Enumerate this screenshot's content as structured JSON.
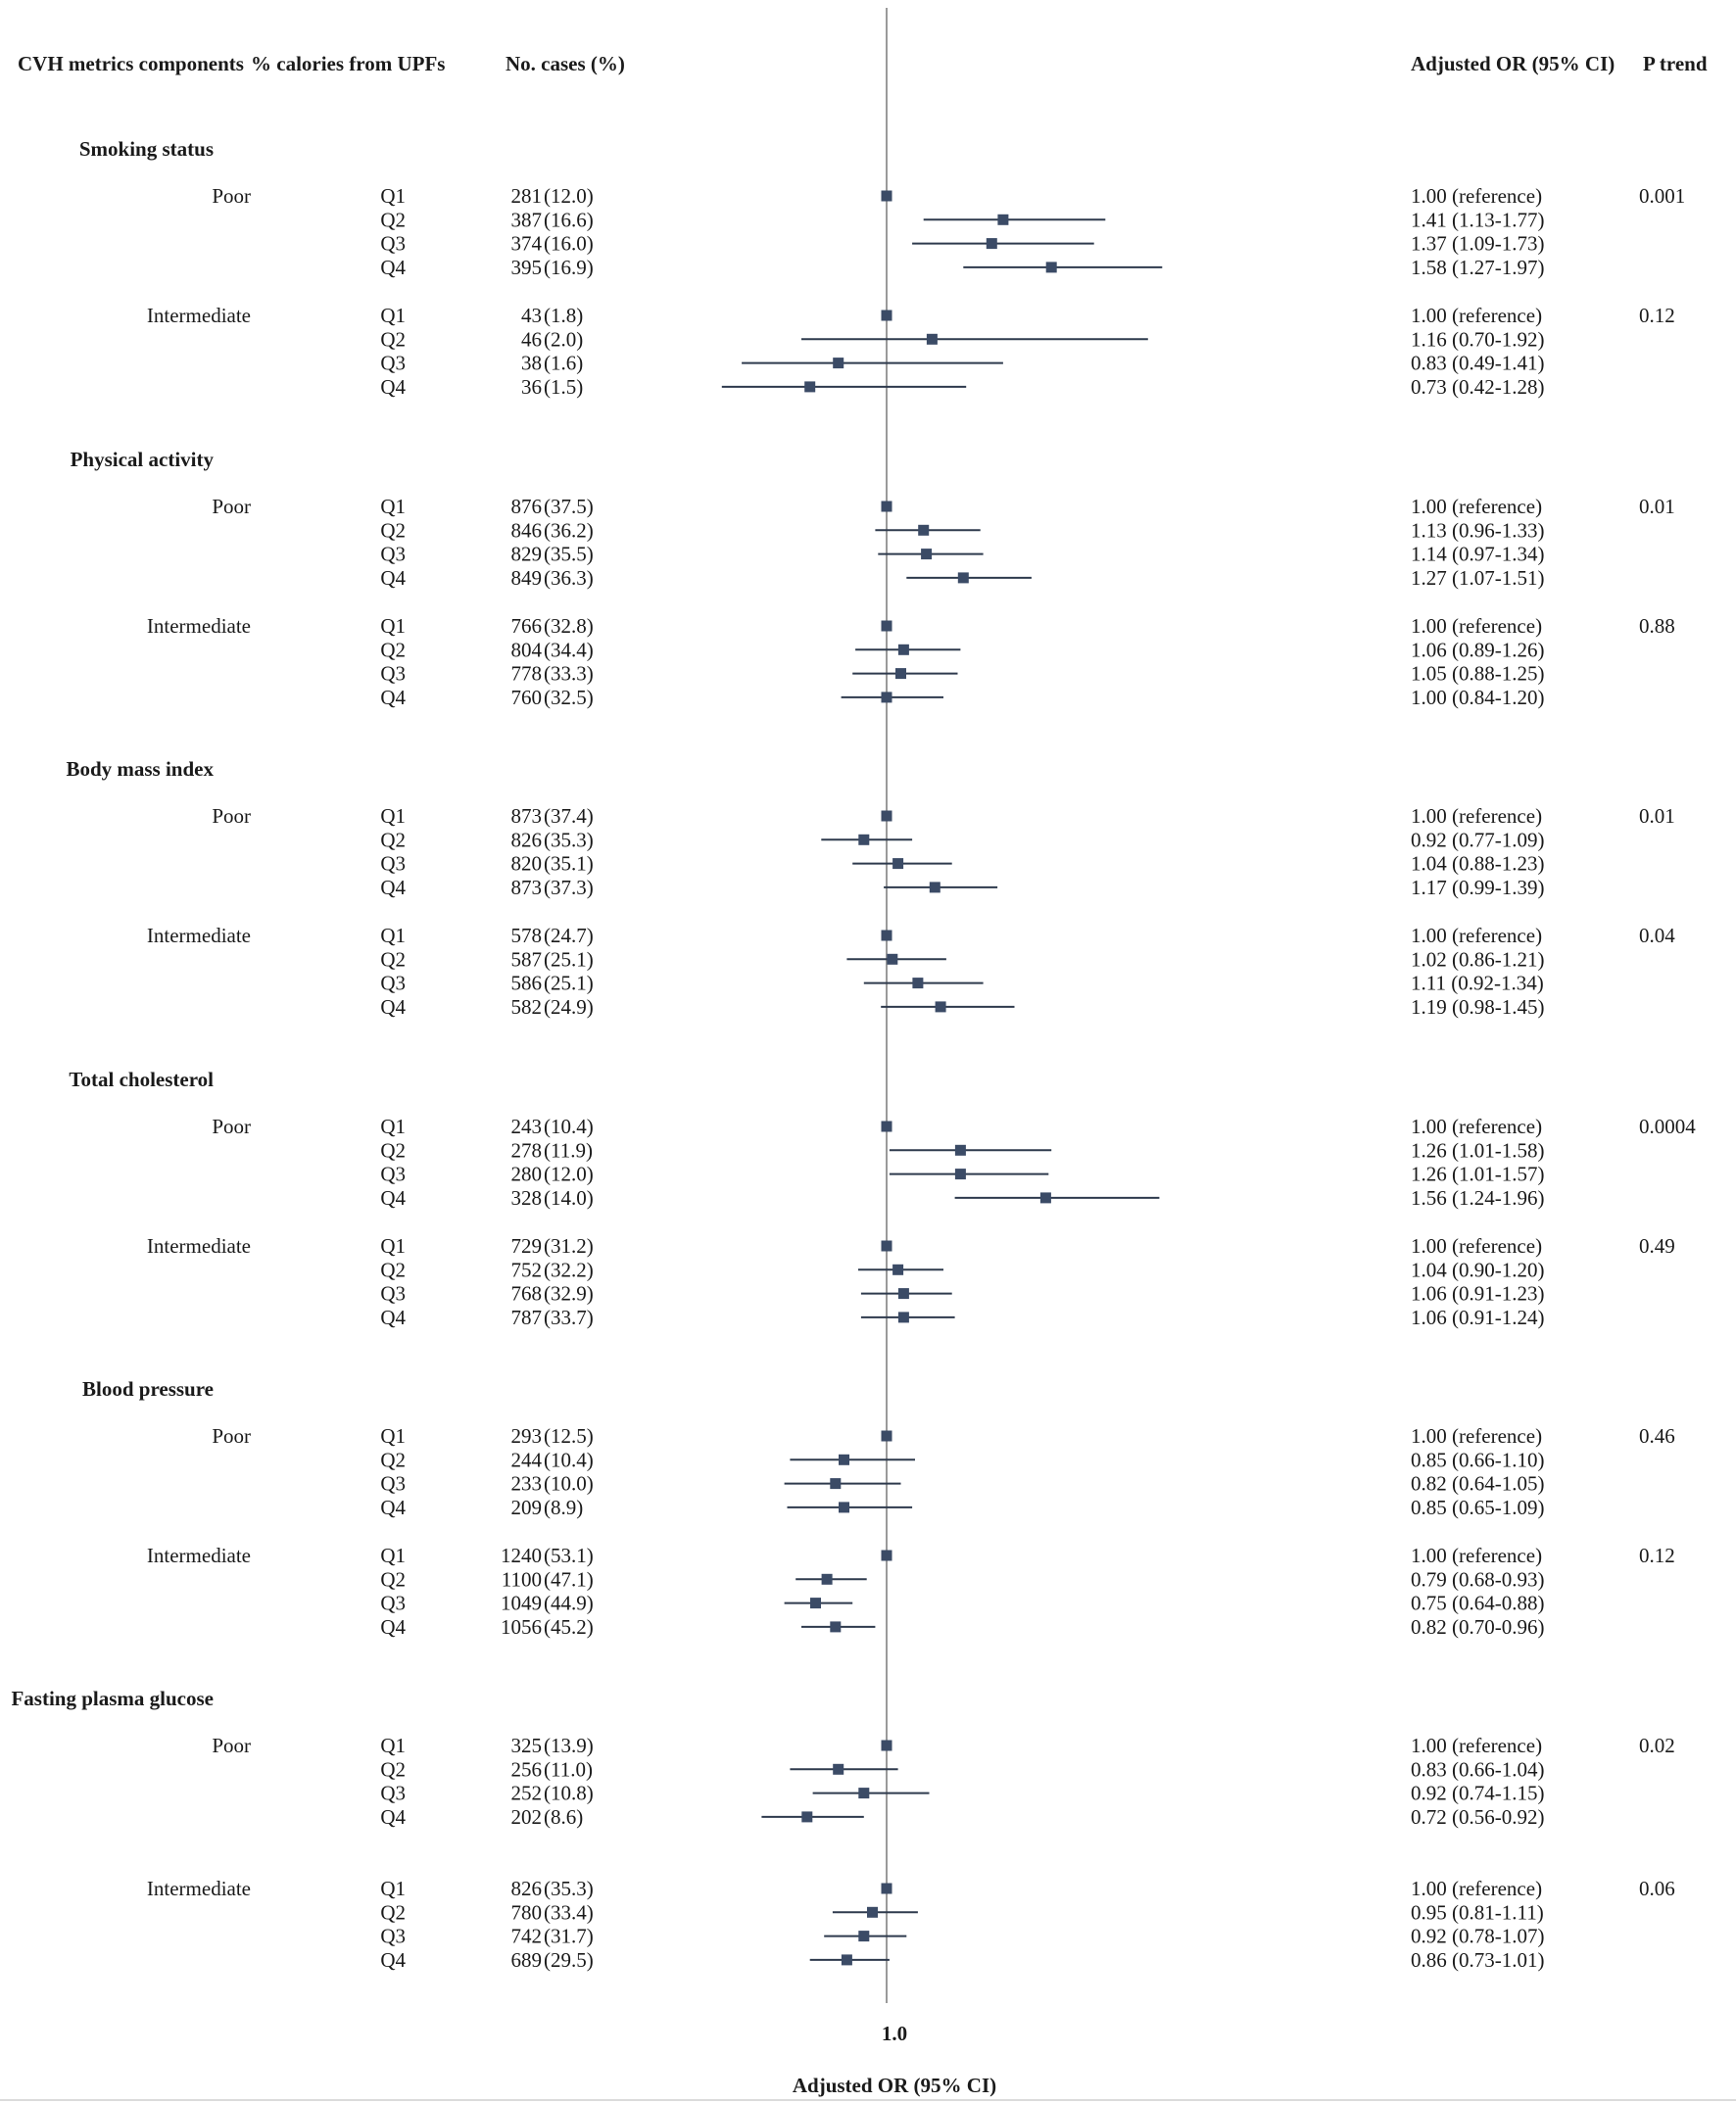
{
  "header": {
    "component": "CVH metrics components",
    "exposure": "% calories from UPFs",
    "cases": "No. cases (%)",
    "or": "Adjusted OR (95% CI)",
    "ptrend": "P trend"
  },
  "axis": {
    "tick_label": "1.0",
    "xlabel": "Adjusted OR (95% CI)"
  },
  "colors": {
    "marker": "#3b4b66",
    "line": "#2e3a4d",
    "reference": "#9a9a9a"
  },
  "chart_data": {
    "type": "forest",
    "title": "",
    "xlabel": "Adjusted OR (95% CI)",
    "reference_value": 1.0,
    "xlim": [
      0.4,
      2.05
    ],
    "sections": [
      {
        "name": "Smoking status",
        "groups": [
          {
            "level": "Poor",
            "p_trend": "0.001",
            "rows": [
              {
                "q": "Q1",
                "cases": "281 (12.0)",
                "label": "1.00 (reference)",
                "or": 1.0,
                "lo": 1.0,
                "hi": 1.0
              },
              {
                "q": "Q2",
                "cases": "387 (16.6)",
                "label": "1.41 (1.13-1.77)",
                "or": 1.41,
                "lo": 1.13,
                "hi": 1.77
              },
              {
                "q": "Q3",
                "cases": "374 (16.0)",
                "label": "1.37 (1.09-1.73)",
                "or": 1.37,
                "lo": 1.09,
                "hi": 1.73
              },
              {
                "q": "Q4",
                "cases": "395 (16.9)",
                "label": "1.58 (1.27-1.97)",
                "or": 1.58,
                "lo": 1.27,
                "hi": 1.97
              }
            ]
          },
          {
            "level": "Intermediate",
            "p_trend": "0.12",
            "rows": [
              {
                "q": "Q1",
                "cases": "43 (1.8)",
                "label": "1.00 (reference)",
                "or": 1.0,
                "lo": 1.0,
                "hi": 1.0
              },
              {
                "q": "Q2",
                "cases": "46 (2.0)",
                "label": "1.16 (0.70-1.92)",
                "or": 1.16,
                "lo": 0.7,
                "hi": 1.92
              },
              {
                "q": "Q3",
                "cases": "38 (1.6)",
                "label": "0.83 (0.49-1.41)",
                "or": 0.83,
                "lo": 0.49,
                "hi": 1.41
              },
              {
                "q": "Q4",
                "cases": "36 (1.5)",
                "label": "0.73 (0.42-1.28)",
                "or": 0.73,
                "lo": 0.42,
                "hi": 1.28
              }
            ]
          }
        ]
      },
      {
        "name": "Physical activity",
        "groups": [
          {
            "level": "Poor",
            "p_trend": "0.01",
            "rows": [
              {
                "q": "Q1",
                "cases": "876 (37.5)",
                "label": "1.00 (reference)",
                "or": 1.0,
                "lo": 1.0,
                "hi": 1.0
              },
              {
                "q": "Q2",
                "cases": "846 (36.2)",
                "label": "1.13 (0.96-1.33)",
                "or": 1.13,
                "lo": 0.96,
                "hi": 1.33
              },
              {
                "q": "Q3",
                "cases": "829 (35.5)",
                "label": "1.14 (0.97-1.34)",
                "or": 1.14,
                "lo": 0.97,
                "hi": 1.34
              },
              {
                "q": "Q4",
                "cases": "849 (36.3)",
                "label": "1.27 (1.07-1.51)",
                "or": 1.27,
                "lo": 1.07,
                "hi": 1.51
              }
            ]
          },
          {
            "level": "Intermediate",
            "p_trend": "0.88",
            "rows": [
              {
                "q": "Q1",
                "cases": "766 (32.8)",
                "label": "1.00 (reference)",
                "or": 1.0,
                "lo": 1.0,
                "hi": 1.0
              },
              {
                "q": "Q2",
                "cases": "804 (34.4)",
                "label": "1.06 (0.89-1.26)",
                "or": 1.06,
                "lo": 0.89,
                "hi": 1.26
              },
              {
                "q": "Q3",
                "cases": "778 (33.3)",
                "label": "1.05 (0.88-1.25)",
                "or": 1.05,
                "lo": 0.88,
                "hi": 1.25
              },
              {
                "q": "Q4",
                "cases": "760 (32.5)",
                "label": "1.00 (0.84-1.20)",
                "or": 1.0,
                "lo": 0.84,
                "hi": 1.2
              }
            ]
          }
        ]
      },
      {
        "name": "Body mass index",
        "groups": [
          {
            "level": "Poor",
            "p_trend": "0.01",
            "rows": [
              {
                "q": "Q1",
                "cases": "873 (37.4)",
                "label": "1.00 (reference)",
                "or": 1.0,
                "lo": 1.0,
                "hi": 1.0
              },
              {
                "q": "Q2",
                "cases": "826 (35.3)",
                "label": "0.92 (0.77-1.09)",
                "or": 0.92,
                "lo": 0.77,
                "hi": 1.09
              },
              {
                "q": "Q3",
                "cases": "820 (35.1)",
                "label": "1.04 (0.88-1.23)",
                "or": 1.04,
                "lo": 0.88,
                "hi": 1.23
              },
              {
                "q": "Q4",
                "cases": "873 (37.3)",
                "label": "1.17 (0.99-1.39)",
                "or": 1.17,
                "lo": 0.99,
                "hi": 1.39
              }
            ]
          },
          {
            "level": "Intermediate",
            "p_trend": "0.04",
            "rows": [
              {
                "q": "Q1",
                "cases": "578 (24.7)",
                "label": "1.00 (reference)",
                "or": 1.0,
                "lo": 1.0,
                "hi": 1.0
              },
              {
                "q": "Q2",
                "cases": "587 (25.1)",
                "label": "1.02 (0.86-1.21)",
                "or": 1.02,
                "lo": 0.86,
                "hi": 1.21
              },
              {
                "q": "Q3",
                "cases": "586 (25.1)",
                "label": "1.11 (0.92-1.34)",
                "or": 1.11,
                "lo": 0.92,
                "hi": 1.34
              },
              {
                "q": "Q4",
                "cases": "582 (24.9)",
                "label": "1.19 (0.98-1.45)",
                "or": 1.19,
                "lo": 0.98,
                "hi": 1.45
              }
            ]
          }
        ]
      },
      {
        "name": "Total cholesterol",
        "groups": [
          {
            "level": "Poor",
            "p_trend": "0.0004",
            "rows": [
              {
                "q": "Q1",
                "cases": "243 (10.4)",
                "label": "1.00 (reference)",
                "or": 1.0,
                "lo": 1.0,
                "hi": 1.0
              },
              {
                "q": "Q2",
                "cases": "278 (11.9)",
                "label": "1.26 (1.01-1.58)",
                "or": 1.26,
                "lo": 1.01,
                "hi": 1.58
              },
              {
                "q": "Q3",
                "cases": "280 (12.0)",
                "label": "1.26 (1.01-1.57)",
                "or": 1.26,
                "lo": 1.01,
                "hi": 1.57
              },
              {
                "q": "Q4",
                "cases": "328 (14.0)",
                "label": "1.56 (1.24-1.96)",
                "or": 1.56,
                "lo": 1.24,
                "hi": 1.96
              }
            ]
          },
          {
            "level": "Intermediate",
            "p_trend": "0.49",
            "rows": [
              {
                "q": "Q1",
                "cases": "729 (31.2)",
                "label": "1.00 (reference)",
                "or": 1.0,
                "lo": 1.0,
                "hi": 1.0
              },
              {
                "q": "Q2",
                "cases": "752 (32.2)",
                "label": "1.04 (0.90-1.20)",
                "or": 1.04,
                "lo": 0.9,
                "hi": 1.2
              },
              {
                "q": "Q3",
                "cases": "768 (32.9)",
                "label": "1.06 (0.91-1.23)",
                "or": 1.06,
                "lo": 0.91,
                "hi": 1.23
              },
              {
                "q": "Q4",
                "cases": "787 (33.7)",
                "label": "1.06 (0.91-1.24)",
                "or": 1.06,
                "lo": 0.91,
                "hi": 1.24
              }
            ]
          }
        ]
      },
      {
        "name": "Blood pressure",
        "groups": [
          {
            "level": "Poor",
            "p_trend": "0.46",
            "rows": [
              {
                "q": "Q1",
                "cases": "293 (12.5)",
                "label": "1.00 (reference)",
                "or": 1.0,
                "lo": 1.0,
                "hi": 1.0
              },
              {
                "q": "Q2",
                "cases": "244 (10.4)",
                "label": "0.85 (0.66-1.10)",
                "or": 0.85,
                "lo": 0.66,
                "hi": 1.1
              },
              {
                "q": "Q3",
                "cases": "233 (10.0)",
                "label": "0.82 (0.64-1.05)",
                "or": 0.82,
                "lo": 0.64,
                "hi": 1.05
              },
              {
                "q": "Q4",
                "cases": "209 (8.9)",
                "label": "0.85 (0.65-1.09)",
                "or": 0.85,
                "lo": 0.65,
                "hi": 1.09
              }
            ]
          },
          {
            "level": "Intermediate",
            "p_trend": "0.12",
            "rows": [
              {
                "q": "Q1",
                "cases": "1240 (53.1)",
                "label": "1.00 (reference)",
                "or": 1.0,
                "lo": 1.0,
                "hi": 1.0
              },
              {
                "q": "Q2",
                "cases": "1100 (47.1)",
                "label": "0.79 (0.68-0.93)",
                "or": 0.79,
                "lo": 0.68,
                "hi": 0.93
              },
              {
                "q": "Q3",
                "cases": "1049 (44.9)",
                "label": "0.75 (0.64-0.88)",
                "or": 0.75,
                "lo": 0.64,
                "hi": 0.88
              },
              {
                "q": "Q4",
                "cases": "1056 (45.2)",
                "label": "0.82 (0.70-0.96)",
                "or": 0.82,
                "lo": 0.7,
                "hi": 0.96
              }
            ]
          }
        ]
      },
      {
        "name": "Fasting plasma glucose",
        "groups": [
          {
            "level": "Poor",
            "p_trend": "0.02",
            "rows": [
              {
                "q": "Q1",
                "cases": "325 (13.9)",
                "label": "1.00 (reference)",
                "or": 1.0,
                "lo": 1.0,
                "hi": 1.0
              },
              {
                "q": "Q2",
                "cases": "256 (11.0)",
                "label": "0.83 (0.66-1.04)",
                "or": 0.83,
                "lo": 0.66,
                "hi": 1.04
              },
              {
                "q": "Q3",
                "cases": "252 (10.8)",
                "label": "0.92 (0.74-1.15)",
                "or": 0.92,
                "lo": 0.74,
                "hi": 1.15
              },
              {
                "q": "Q4",
                "cases": "202 (8.6)",
                "label": "0.72 (0.56-0.92)",
                "or": 0.72,
                "lo": 0.56,
                "hi": 0.92
              }
            ]
          },
          {
            "level": "Intermediate",
            "p_trend": "0.06",
            "rows": [
              {
                "q": "Q1",
                "cases": "826 (35.3)",
                "label": "1.00 (reference)",
                "or": 1.0,
                "lo": 1.0,
                "hi": 1.0
              },
              {
                "q": "Q2",
                "cases": "780 (33.4)",
                "label": "0.95 (0.81-1.11)",
                "or": 0.95,
                "lo": 0.81,
                "hi": 1.11
              },
              {
                "q": "Q3",
                "cases": "742 (31.7)",
                "label": "0.92 (0.78-1.07)",
                "or": 0.92,
                "lo": 0.78,
                "hi": 1.07
              },
              {
                "q": "Q4",
                "cases": "689 (29.5)",
                "label": "0.86 (0.73-1.01)",
                "or": 0.86,
                "lo": 0.73,
                "hi": 1.01
              }
            ]
          }
        ]
      }
    ]
  }
}
